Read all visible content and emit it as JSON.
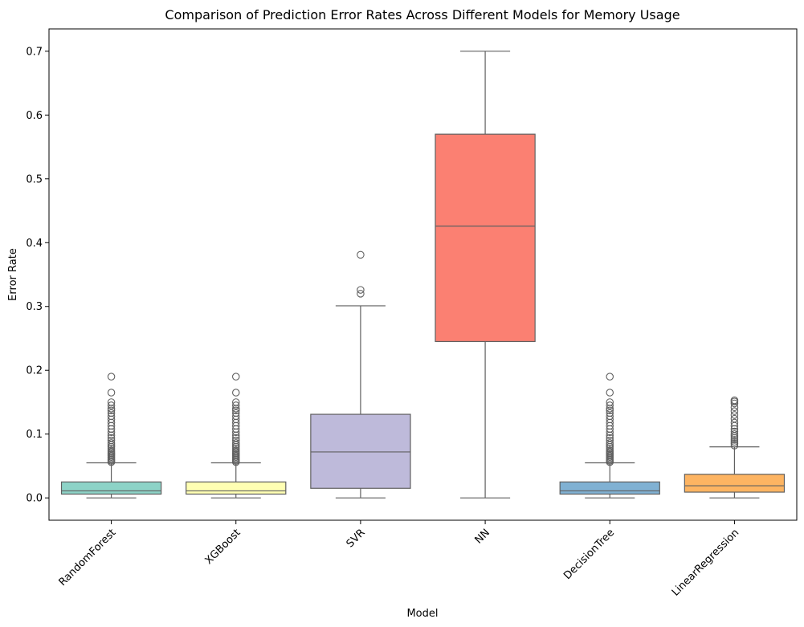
{
  "chart_data": {
    "type": "box",
    "title": "Comparison of Prediction Error Rates Across Different Models for Memory Usage",
    "xlabel": "Model",
    "ylabel": "Error Rate",
    "ylim": [
      -0.035,
      0.735
    ],
    "yticks": [
      0.0,
      0.1,
      0.2,
      0.3,
      0.4,
      0.5,
      0.6,
      0.7
    ],
    "ytick_labels": [
      "0.0",
      "0.1",
      "0.2",
      "0.3",
      "0.4",
      "0.5",
      "0.6",
      "0.7"
    ],
    "grid": false,
    "categories": [
      "RandomForest",
      "XGBoost",
      "SVR",
      "NN",
      "DecisionTree",
      "LinearRegression"
    ],
    "boxes": [
      {
        "name": "RandomForest",
        "color": "#8dd3c7",
        "whisker_low": 0.0,
        "q1": 0.006,
        "median": 0.011,
        "q3": 0.025,
        "whisker_high": 0.055,
        "outliers": [
          0.056,
          0.058,
          0.06,
          0.062,
          0.064,
          0.066,
          0.068,
          0.07,
          0.072,
          0.074,
          0.077,
          0.08,
          0.083,
          0.086,
          0.09,
          0.094,
          0.098,
          0.103,
          0.108,
          0.113,
          0.118,
          0.123,
          0.128,
          0.133,
          0.137,
          0.14,
          0.145,
          0.15,
          0.165,
          0.19
        ]
      },
      {
        "name": "XGBoost",
        "color": "#ffffb3",
        "whisker_low": 0.0,
        "q1": 0.006,
        "median": 0.011,
        "q3": 0.025,
        "whisker_high": 0.055,
        "outliers": [
          0.056,
          0.058,
          0.06,
          0.062,
          0.064,
          0.066,
          0.068,
          0.07,
          0.072,
          0.074,
          0.077,
          0.08,
          0.083,
          0.086,
          0.09,
          0.094,
          0.098,
          0.103,
          0.108,
          0.113,
          0.118,
          0.123,
          0.128,
          0.133,
          0.137,
          0.14,
          0.145,
          0.15,
          0.165,
          0.19
        ]
      },
      {
        "name": "SVR",
        "color": "#bebada",
        "whisker_low": 0.0,
        "q1": 0.015,
        "median": 0.072,
        "q3": 0.131,
        "whisker_high": 0.301,
        "outliers": [
          0.32,
          0.326,
          0.381
        ]
      },
      {
        "name": "NN",
        "color": "#fb8072",
        "whisker_low": 0.0,
        "q1": 0.245,
        "median": 0.426,
        "q3": 0.57,
        "whisker_high": 0.7,
        "outliers": []
      },
      {
        "name": "DecisionTree",
        "color": "#80b1d3",
        "whisker_low": 0.0,
        "q1": 0.006,
        "median": 0.011,
        "q3": 0.025,
        "whisker_high": 0.055,
        "outliers": [
          0.056,
          0.058,
          0.06,
          0.062,
          0.064,
          0.066,
          0.068,
          0.07,
          0.072,
          0.074,
          0.077,
          0.08,
          0.083,
          0.086,
          0.09,
          0.094,
          0.098,
          0.103,
          0.108,
          0.113,
          0.118,
          0.123,
          0.128,
          0.133,
          0.137,
          0.14,
          0.145,
          0.15,
          0.165,
          0.19
        ]
      },
      {
        "name": "LinearRegression",
        "color": "#fdb462",
        "whisker_low": 0.0,
        "q1": 0.009,
        "median": 0.019,
        "q3": 0.037,
        "whisker_high": 0.08,
        "outliers": [
          0.082,
          0.085,
          0.088,
          0.091,
          0.094,
          0.097,
          0.1,
          0.104,
          0.108,
          0.113,
          0.118,
          0.124,
          0.13,
          0.136,
          0.142,
          0.148,
          0.151,
          0.153
        ]
      }
    ]
  }
}
